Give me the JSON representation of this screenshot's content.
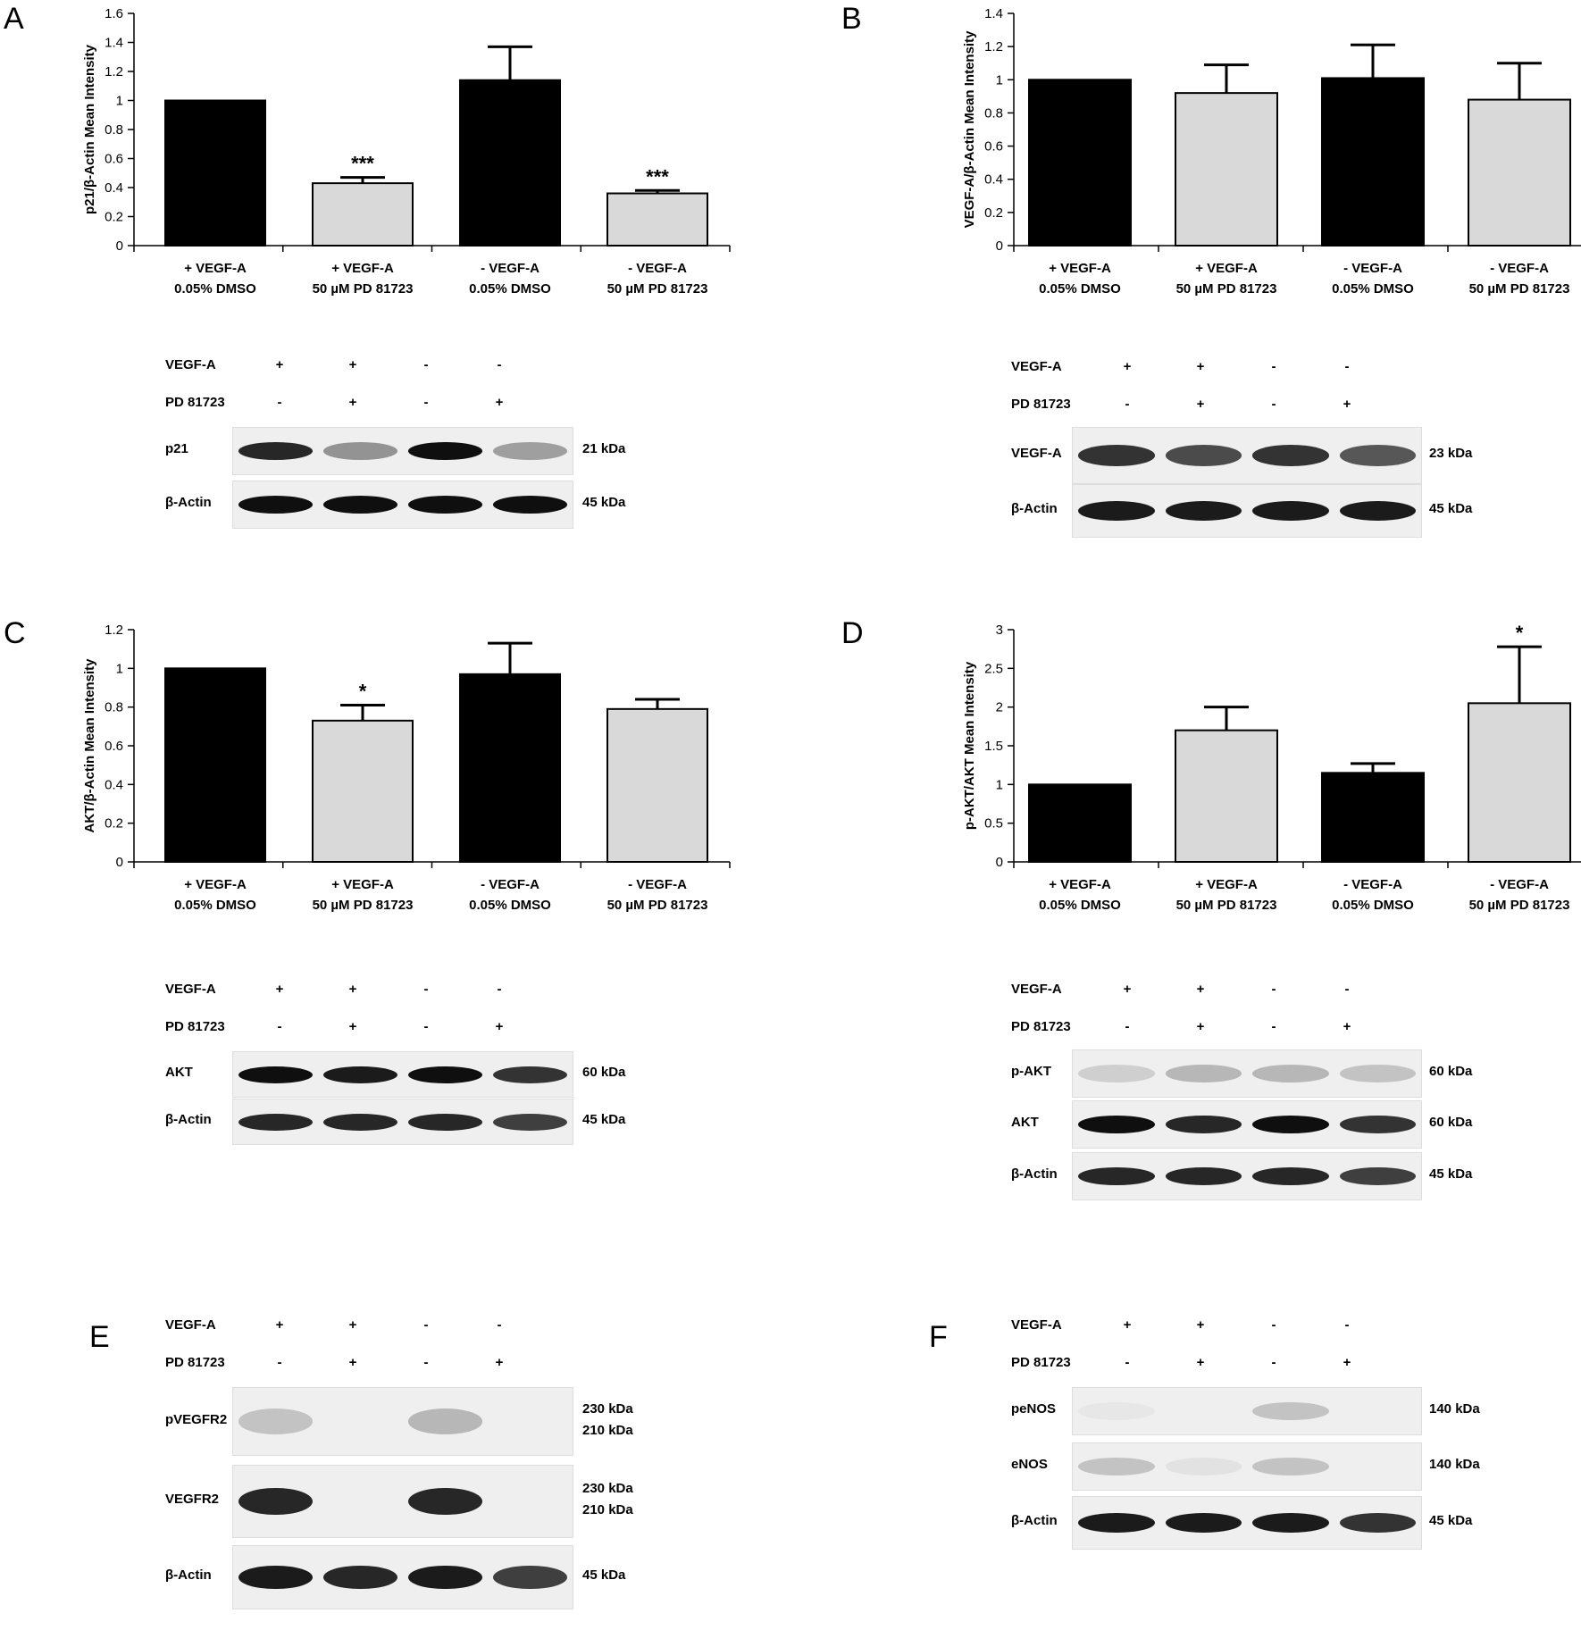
{
  "panels": {
    "A": "A",
    "B": "B",
    "C": "C",
    "D": "D",
    "E": "E",
    "F": "F"
  },
  "chart_data": [
    {
      "id": "A",
      "type": "bar",
      "ylabel": "p21/β-Actin Mean Intensity",
      "ylim": [
        0,
        1.6
      ],
      "yticks": [
        "0",
        "0.2",
        "0.4",
        "0.6",
        "0.8",
        "1",
        "1.2",
        "1.4",
        "1.6"
      ],
      "categories": [
        [
          "+ VEGF-A",
          "0.05% DMSO"
        ],
        [
          "+ VEGF-A",
          "50 µM PD 81723"
        ],
        [
          "- VEGF-A",
          "0.05% DMSO"
        ],
        [
          "- VEGF-A",
          "50 µM PD 81723"
        ]
      ],
      "values": [
        1.0,
        0.43,
        1.14,
        0.36
      ],
      "errors": [
        0,
        0.04,
        0.23,
        0.02
      ],
      "colors": [
        "#000000",
        "#d9d9d9",
        "#000000",
        "#d9d9d9"
      ],
      "annotations": [
        "",
        "***",
        "",
        "***"
      ]
    },
    {
      "id": "B",
      "type": "bar",
      "ylabel": "VEGF-A/β-Actin Mean Intensity",
      "ylim": [
        0,
        1.4
      ],
      "yticks": [
        "0",
        "0.2",
        "0.4",
        "0.6",
        "0.8",
        "1",
        "1.2",
        "1.4"
      ],
      "categories": [
        [
          "+ VEGF-A",
          "0.05% DMSO"
        ],
        [
          "+ VEGF-A",
          "50 µM PD 81723"
        ],
        [
          "- VEGF-A",
          "0.05% DMSO"
        ],
        [
          "- VEGF-A",
          "50 µM PD 81723"
        ]
      ],
      "values": [
        1.0,
        0.92,
        1.01,
        0.88
      ],
      "errors": [
        0,
        0.17,
        0.2,
        0.22
      ],
      "colors": [
        "#000000",
        "#d9d9d9",
        "#000000",
        "#d9d9d9"
      ],
      "annotations": [
        "",
        "",
        "",
        ""
      ]
    },
    {
      "id": "C",
      "type": "bar",
      "ylabel": "AKT/β-Actin Mean Intensity",
      "ylim": [
        0,
        1.2
      ],
      "yticks": [
        "0",
        "0.2",
        "0.4",
        "0.6",
        "0.8",
        "1",
        "1.2"
      ],
      "categories": [
        [
          "+ VEGF-A",
          "0.05% DMSO"
        ],
        [
          "+ VEGF-A",
          "50 µM PD 81723"
        ],
        [
          "- VEGF-A",
          "0.05% DMSO"
        ],
        [
          "- VEGF-A",
          "50 µM PD 81723"
        ]
      ],
      "values": [
        1.0,
        0.73,
        0.97,
        0.79
      ],
      "errors": [
        0,
        0.08,
        0.16,
        0.05
      ],
      "colors": [
        "#000000",
        "#d9d9d9",
        "#000000",
        "#d9d9d9"
      ],
      "annotations": [
        "",
        "*",
        "",
        ""
      ]
    },
    {
      "id": "D",
      "type": "bar",
      "ylabel": "p-AKT/AKT Mean Intensity",
      "ylim": [
        0,
        3
      ],
      "yticks": [
        "0",
        "0.5",
        "1",
        "1.5",
        "2",
        "2.5",
        "3"
      ],
      "categories": [
        [
          "+ VEGF-A",
          "0.05% DMSO"
        ],
        [
          "+ VEGF-A",
          "50 µM PD 81723"
        ],
        [
          "- VEGF-A",
          "0.05% DMSO"
        ],
        [
          "- VEGF-A",
          "50 µM PD 81723"
        ]
      ],
      "values": [
        1.0,
        1.7,
        1.15,
        2.05
      ],
      "errors": [
        0,
        0.3,
        0.12,
        0.73
      ],
      "colors": [
        "#000000",
        "#d9d9d9",
        "#000000",
        "#d9d9d9"
      ],
      "annotations": [
        "",
        "",
        "",
        "*"
      ]
    }
  ],
  "blots": [
    {
      "id": "A",
      "rows": [
        {
          "label": "VEGF-A",
          "signs": [
            "+",
            "+",
            "-",
            "-"
          ]
        },
        {
          "label": "PD 81723",
          "signs": [
            "-",
            "+",
            "-",
            "+"
          ]
        }
      ],
      "strips": [
        {
          "label": "p21",
          "kda": [
            "21 kDa"
          ],
          "bands": [
            0.9,
            0.45,
            1.0,
            0.4
          ]
        },
        {
          "label": "β-Actin",
          "kda": [
            "45 kDa"
          ],
          "bands": [
            1.0,
            1.0,
            1.0,
            1.0
          ]
        }
      ]
    },
    {
      "id": "B",
      "rows": [
        {
          "label": "VEGF-A",
          "signs": [
            "+",
            "+",
            "-",
            "-"
          ]
        },
        {
          "label": "PD 81723",
          "signs": [
            "-",
            "+",
            "-",
            "+"
          ]
        }
      ],
      "strips": [
        {
          "label": "VEGF-A",
          "kda": [
            "23 kDa"
          ],
          "bands": [
            0.85,
            0.75,
            0.85,
            0.7
          ]
        },
        {
          "label": "β-Actin",
          "kda": [
            "45 kDa"
          ],
          "bands": [
            0.95,
            0.95,
            0.95,
            0.95
          ]
        }
      ]
    },
    {
      "id": "C",
      "rows": [
        {
          "label": "VEGF-A",
          "signs": [
            "+",
            "+",
            "-",
            "-"
          ]
        },
        {
          "label": "PD 81723",
          "signs": [
            "-",
            "+",
            "-",
            "+"
          ]
        }
      ],
      "strips": [
        {
          "label": "AKT",
          "kda": [
            "60 kDa"
          ],
          "bands": [
            1.0,
            0.95,
            1.0,
            0.85
          ]
        },
        {
          "label": "β-Actin",
          "kda": [
            "45 kDa"
          ],
          "bands": [
            0.9,
            0.9,
            0.9,
            0.8
          ]
        }
      ]
    },
    {
      "id": "D",
      "rows": [
        {
          "label": "VEGF-A",
          "signs": [
            "+",
            "+",
            "-",
            "-"
          ]
        },
        {
          "label": "PD 81723",
          "signs": [
            "-",
            "+",
            "-",
            "+"
          ]
        }
      ],
      "strips": [
        {
          "label": "p-AKT",
          "kda": [
            "60 kDa"
          ],
          "bands": [
            0.2,
            0.3,
            0.3,
            0.25
          ]
        },
        {
          "label": "AKT",
          "kda": [
            "60 kDa"
          ],
          "bands": [
            1.0,
            0.9,
            1.0,
            0.85
          ]
        },
        {
          "label": "β-Actin",
          "kda": [
            "45 kDa"
          ],
          "bands": [
            0.9,
            0.9,
            0.9,
            0.8
          ]
        }
      ]
    },
    {
      "id": "E",
      "rows": [
        {
          "label": "VEGF-A",
          "signs": [
            "+",
            "+",
            "-",
            "-"
          ]
        },
        {
          "label": "PD 81723",
          "signs": [
            "-",
            "+",
            "-",
            "+"
          ]
        }
      ],
      "strips": [
        {
          "label": "pVEGFR2",
          "kda": [
            "230 kDa",
            "210 kDa"
          ],
          "bands": [
            0.25,
            0.0,
            0.3,
            0.0
          ]
        },
        {
          "label": "VEGFR2",
          "kda": [
            "230 kDa",
            "210 kDa"
          ],
          "bands": [
            0.9,
            0.0,
            0.9,
            0.0
          ]
        },
        {
          "label": "β-Actin",
          "kda": [
            "45 kDa"
          ],
          "bands": [
            0.95,
            0.9,
            0.95,
            0.8
          ]
        }
      ]
    },
    {
      "id": "F",
      "rows": [
        {
          "label": "VEGF-A",
          "signs": [
            "+",
            "+",
            "-",
            "-"
          ]
        },
        {
          "label": "PD 81723",
          "signs": [
            "-",
            "+",
            "-",
            "+"
          ]
        }
      ],
      "strips": [
        {
          "label": "peNOS",
          "kda": [
            "140 kDa"
          ],
          "bands": [
            0.1,
            0.0,
            0.25,
            0.0
          ]
        },
        {
          "label": "eNOS",
          "kda": [
            "140 kDa"
          ],
          "bands": [
            0.25,
            0.12,
            0.25,
            0.0
          ]
        },
        {
          "label": "β-Actin",
          "kda": [
            "45 kDa"
          ],
          "bands": [
            0.95,
            0.95,
            0.95,
            0.85
          ]
        }
      ]
    }
  ]
}
